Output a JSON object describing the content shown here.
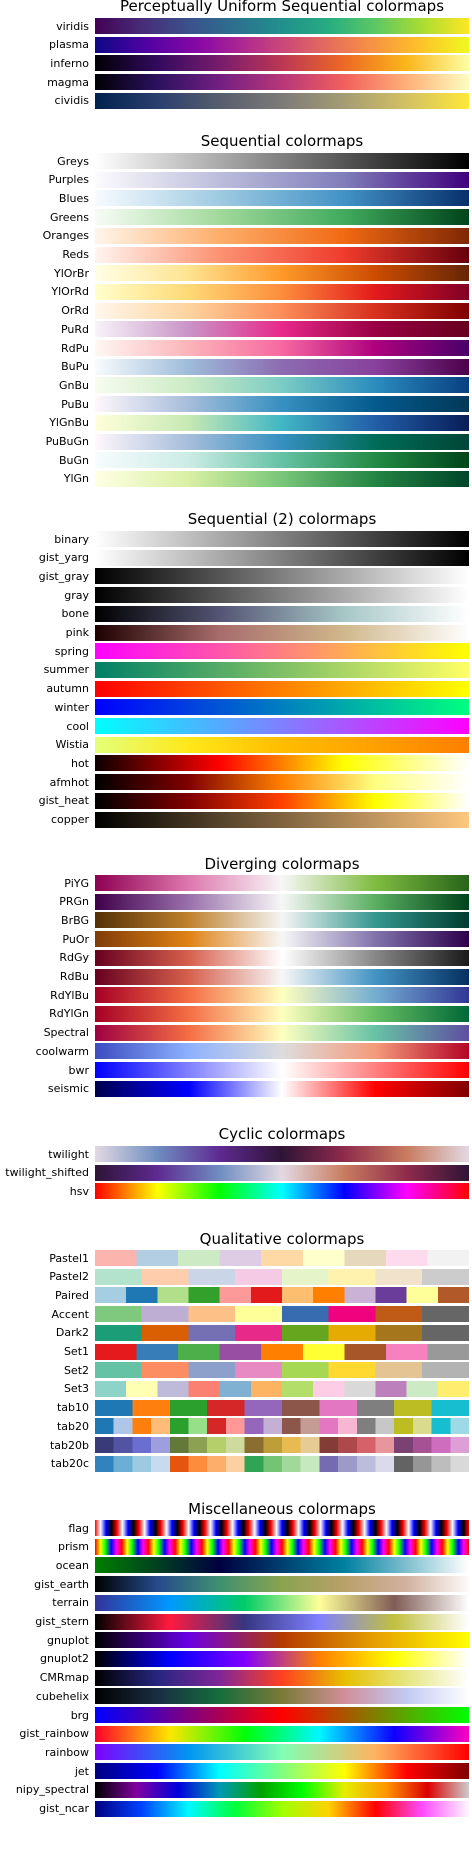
{
  "chart_data": [
    {
      "type": "heatmap",
      "title": "Perceptually Uniform Sequential colormaps",
      "series": [
        {
          "name": "viridis",
          "colors": [
            "#440154",
            "#472c7a",
            "#3b518b",
            "#2c718e",
            "#21908d",
            "#27ad81",
            "#5cc863",
            "#aadc32",
            "#fde725"
          ]
        },
        {
          "name": "plasma",
          "colors": [
            "#0d0887",
            "#5302a3",
            "#8b0aa5",
            "#b83289",
            "#db5c68",
            "#f48849",
            "#febd2a",
            "#f0f921"
          ]
        },
        {
          "name": "inferno",
          "colors": [
            "#000004",
            "#320a5e",
            "#781c6d",
            "#bc3754",
            "#ed6925",
            "#fbb61a",
            "#fcffa4"
          ]
        },
        {
          "name": "magma",
          "colors": [
            "#000004",
            "#2c115f",
            "#721f81",
            "#b73779",
            "#f1605d",
            "#feb078",
            "#fcfdbf"
          ]
        },
        {
          "name": "cividis",
          "colors": [
            "#00224e",
            "#2a3f6e",
            "#575d6d",
            "#7c7b78",
            "#a59c74",
            "#d3c064",
            "#fee838"
          ]
        }
      ]
    },
    {
      "type": "heatmap",
      "title": "Sequential colormaps",
      "series": [
        {
          "name": "Greys",
          "colors": [
            "#ffffff",
            "#000000"
          ]
        },
        {
          "name": "Purples",
          "colors": [
            "#fcfbfd",
            "#bcbddc",
            "#807dba",
            "#3f007d"
          ]
        },
        {
          "name": "Blues",
          "colors": [
            "#f7fbff",
            "#9ecae1",
            "#4292c6",
            "#08306b"
          ]
        },
        {
          "name": "Greens",
          "colors": [
            "#f7fcf5",
            "#a1d99b",
            "#41ab5d",
            "#00441b"
          ]
        },
        {
          "name": "Oranges",
          "colors": [
            "#fff5eb",
            "#fdae6b",
            "#f16913",
            "#7f2704"
          ]
        },
        {
          "name": "Reds",
          "colors": [
            "#fff5f0",
            "#fc9272",
            "#ef3b2c",
            "#67000d"
          ]
        },
        {
          "name": "YlOrBr",
          "colors": [
            "#ffffe5",
            "#fee391",
            "#fe9929",
            "#cc4c02",
            "#662506"
          ]
        },
        {
          "name": "YlOrRd",
          "colors": [
            "#ffffcc",
            "#fed976",
            "#fd8d3c",
            "#e31a1c",
            "#800026"
          ]
        },
        {
          "name": "OrRd",
          "colors": [
            "#fff7ec",
            "#fdd49e",
            "#fc8d59",
            "#d7301f",
            "#7f0000"
          ]
        },
        {
          "name": "PuRd",
          "colors": [
            "#f7f4f9",
            "#c994c7",
            "#e7298a",
            "#980043",
            "#67001f"
          ]
        },
        {
          "name": "RdPu",
          "colors": [
            "#fff7f3",
            "#fbb4b9",
            "#f768a1",
            "#ae017e",
            "#49006a"
          ]
        },
        {
          "name": "BuPu",
          "colors": [
            "#f7fcfd",
            "#9ebcda",
            "#8c6bb1",
            "#88419d",
            "#4d004b"
          ]
        },
        {
          "name": "GnBu",
          "colors": [
            "#f7fcf0",
            "#ccebc5",
            "#7bccc4",
            "#2b8cbe",
            "#084081"
          ]
        },
        {
          "name": "PuBu",
          "colors": [
            "#fff7fb",
            "#a6bddb",
            "#3690c0",
            "#045a8d",
            "#023858"
          ]
        },
        {
          "name": "YlGnBu",
          "colors": [
            "#ffffd9",
            "#c7e9b4",
            "#41b6c4",
            "#225ea8",
            "#081d58"
          ]
        },
        {
          "name": "PuBuGn",
          "colors": [
            "#fff7fb",
            "#a6bddb",
            "#3690c0",
            "#016c59",
            "#014636"
          ]
        },
        {
          "name": "BuGn",
          "colors": [
            "#f7fcfd",
            "#ccece6",
            "#66c2a4",
            "#238b45",
            "#00441b"
          ]
        },
        {
          "name": "YlGn",
          "colors": [
            "#ffffe5",
            "#d9f0a3",
            "#78c679",
            "#238443",
            "#004529"
          ]
        }
      ]
    },
    {
      "type": "heatmap",
      "title": "Sequential (2) colormaps",
      "series": [
        {
          "name": "binary",
          "colors": [
            "#ffffff",
            "#000000"
          ]
        },
        {
          "name": "gist_yarg",
          "colors": [
            "#ffffff",
            "#000000"
          ]
        },
        {
          "name": "gist_gray",
          "colors": [
            "#000000",
            "#ffffff"
          ]
        },
        {
          "name": "gray",
          "colors": [
            "#000000",
            "#ffffff"
          ]
        },
        {
          "name": "bone",
          "colors": [
            "#000000",
            "#545474",
            "#a7c7c7",
            "#ffffff"
          ]
        },
        {
          "name": "pink",
          "colors": [
            "#1e0000",
            "#a76c6c",
            "#d0b88c",
            "#ffffff"
          ]
        },
        {
          "name": "spring",
          "colors": [
            "#ff00ff",
            "#ffff00"
          ]
        },
        {
          "name": "summer",
          "colors": [
            "#008066",
            "#ffff66"
          ]
        },
        {
          "name": "autumn",
          "colors": [
            "#ff0000",
            "#ffff00"
          ]
        },
        {
          "name": "winter",
          "colors": [
            "#0000ff",
            "#00ff80"
          ]
        },
        {
          "name": "cool",
          "colors": [
            "#00ffff",
            "#ff00ff"
          ]
        },
        {
          "name": "Wistia",
          "colors": [
            "#e4ff7a",
            "#ffe81a",
            "#ffbd00",
            "#ffa000",
            "#fc7f00"
          ]
        },
        {
          "name": "hot",
          "colors": [
            "#0b0000",
            "#ff0000",
            "#ffff00",
            "#ffffff"
          ]
        },
        {
          "name": "afmhot",
          "colors": [
            "#000000",
            "#800000",
            "#ff8000",
            "#ffff80",
            "#ffffff"
          ]
        },
        {
          "name": "gist_heat",
          "colors": [
            "#000000",
            "#800000",
            "#ff4000",
            "#ffff00",
            "#ffffff"
          ]
        },
        {
          "name": "copper",
          "colors": [
            "#000000",
            "#ffc77f"
          ]
        }
      ]
    },
    {
      "type": "heatmap",
      "title": "Diverging colormaps",
      "series": [
        {
          "name": "PiYG",
          "colors": [
            "#8e0152",
            "#de77ae",
            "#f7f7f7",
            "#7fbc41",
            "#276419"
          ]
        },
        {
          "name": "PRGn",
          "colors": [
            "#40004b",
            "#9970ab",
            "#f7f7f7",
            "#5aae61",
            "#00441b"
          ]
        },
        {
          "name": "BrBG",
          "colors": [
            "#543005",
            "#bf812d",
            "#f5f5f5",
            "#35978f",
            "#003c30"
          ]
        },
        {
          "name": "PuOr",
          "colors": [
            "#7f3b08",
            "#e08214",
            "#f7f7f7",
            "#8073ac",
            "#2d004b"
          ]
        },
        {
          "name": "RdGy",
          "colors": [
            "#67001f",
            "#d6604d",
            "#ffffff",
            "#878787",
            "#1a1a1a"
          ]
        },
        {
          "name": "RdBu",
          "colors": [
            "#67001f",
            "#d6604d",
            "#f7f7f7",
            "#4393c3",
            "#053061"
          ]
        },
        {
          "name": "RdYlBu",
          "colors": [
            "#a50026",
            "#f46d43",
            "#ffffbf",
            "#74add1",
            "#313695"
          ]
        },
        {
          "name": "RdYlGn",
          "colors": [
            "#a50026",
            "#f46d43",
            "#ffffbf",
            "#66bd63",
            "#006837"
          ]
        },
        {
          "name": "Spectral",
          "colors": [
            "#9e0142",
            "#f46d43",
            "#ffffbf",
            "#66c2a5",
            "#5e4fa2"
          ]
        },
        {
          "name": "coolwarm",
          "colors": [
            "#3b4cc0",
            "#8db0fe",
            "#dddddd",
            "#f49a7b",
            "#b40426"
          ]
        },
        {
          "name": "bwr",
          "colors": [
            "#0000ff",
            "#ffffff",
            "#ff0000"
          ]
        },
        {
          "name": "seismic",
          "colors": [
            "#00004d",
            "#0000ff",
            "#ffffff",
            "#ff0000",
            "#800000"
          ]
        }
      ]
    },
    {
      "type": "heatmap",
      "title": "Cyclic colormaps",
      "series": [
        {
          "name": "twilight",
          "colors": [
            "#e2d9e2",
            "#6f8dc1",
            "#5e2a91",
            "#2f1436",
            "#8f2b4c",
            "#c87c5f",
            "#e2d9e2"
          ]
        },
        {
          "name": "twilight_shifted",
          "colors": [
            "#2f1436",
            "#5e2a91",
            "#6f8dc1",
            "#e2d9e2",
            "#c87c5f",
            "#8f2b4c",
            "#2f1436"
          ]
        },
        {
          "name": "hsv",
          "colors": [
            "#ff0000",
            "#ffff00",
            "#00ff00",
            "#00ffff",
            "#0000ff",
            "#ff00ff",
            "#ff0000"
          ]
        }
      ]
    },
    {
      "type": "heatmap",
      "title": "Qualitative colormaps",
      "series": [
        {
          "name": "Pastel1",
          "discrete": true,
          "colors": [
            "#fbb4ae",
            "#b3cde3",
            "#ccebc5",
            "#decbe4",
            "#fed9a6",
            "#ffffcc",
            "#e5d8bd",
            "#fddaec",
            "#f2f2f2"
          ]
        },
        {
          "name": "Pastel2",
          "discrete": true,
          "colors": [
            "#b3e2cd",
            "#fdcdac",
            "#cbd5e8",
            "#f4cae4",
            "#e6f5c9",
            "#fff2ae",
            "#f1e2cc",
            "#cccccc"
          ]
        },
        {
          "name": "Paired",
          "discrete": true,
          "colors": [
            "#a6cee3",
            "#1f78b4",
            "#b2df8a",
            "#33a02c",
            "#fb9a99",
            "#e31a1c",
            "#fdbf6f",
            "#ff7f00",
            "#cab2d6",
            "#6a3d9a",
            "#ffff99",
            "#b15928"
          ]
        },
        {
          "name": "Accent",
          "discrete": true,
          "colors": [
            "#7fc97f",
            "#beaed4",
            "#fdc086",
            "#ffff99",
            "#386cb0",
            "#f0027f",
            "#bf5b17",
            "#666666"
          ]
        },
        {
          "name": "Dark2",
          "discrete": true,
          "colors": [
            "#1b9e77",
            "#d95f02",
            "#7570b3",
            "#e7298a",
            "#66a61e",
            "#e6ab02",
            "#a6761d",
            "#666666"
          ]
        },
        {
          "name": "Set1",
          "discrete": true,
          "colors": [
            "#e41a1c",
            "#377eb8",
            "#4daf4a",
            "#984ea3",
            "#ff7f00",
            "#ffff33",
            "#a65628",
            "#f781bf",
            "#999999"
          ]
        },
        {
          "name": "Set2",
          "discrete": true,
          "colors": [
            "#66c2a5",
            "#fc8d62",
            "#8da0cb",
            "#e78ac3",
            "#a6d854",
            "#ffd92f",
            "#e5c494",
            "#b3b3b3"
          ]
        },
        {
          "name": "Set3",
          "discrete": true,
          "colors": [
            "#8dd3c7",
            "#ffffb3",
            "#bebada",
            "#fb8072",
            "#80b1d3",
            "#fdb462",
            "#b3de69",
            "#fccde5",
            "#d9d9d9",
            "#bc80bd",
            "#ccebc5",
            "#ffed6f"
          ]
        },
        {
          "name": "tab10",
          "discrete": true,
          "colors": [
            "#1f77b4",
            "#ff7f0e",
            "#2ca02c",
            "#d62728",
            "#9467bd",
            "#8c564b",
            "#e377c2",
            "#7f7f7f",
            "#bcbd22",
            "#17becf"
          ]
        },
        {
          "name": "tab20",
          "discrete": true,
          "colors": [
            "#1f77b4",
            "#aec7e8",
            "#ff7f0e",
            "#ffbb78",
            "#2ca02c",
            "#98df8a",
            "#d62728",
            "#ff9896",
            "#9467bd",
            "#c5b0d5",
            "#8c564b",
            "#c49c94",
            "#e377c2",
            "#f7b6d2",
            "#7f7f7f",
            "#c7c7c7",
            "#bcbd22",
            "#dbdb8d",
            "#17becf",
            "#9edae5"
          ]
        },
        {
          "name": "tab20b",
          "discrete": true,
          "colors": [
            "#393b79",
            "#5254a3",
            "#6b6ecf",
            "#9c9ede",
            "#637939",
            "#8ca252",
            "#b5cf6b",
            "#cedb9c",
            "#8c6d31",
            "#bd9e39",
            "#e7ba52",
            "#e7cb94",
            "#843c39",
            "#ad494a",
            "#d6616b",
            "#e7969c",
            "#7b4173",
            "#a55194",
            "#ce6dbd",
            "#de9ed6"
          ]
        },
        {
          "name": "tab20c",
          "discrete": true,
          "colors": [
            "#3182bd",
            "#6baed6",
            "#9ecae1",
            "#c6dbef",
            "#e6550d",
            "#fd8d3c",
            "#fdae6b",
            "#fdd0a2",
            "#31a354",
            "#74c476",
            "#a1d99b",
            "#c7e9c0",
            "#756bb1",
            "#9e9ac8",
            "#bcbddc",
            "#dadaeb",
            "#636363",
            "#969696",
            "#bdbdbd",
            "#d9d9d9"
          ]
        }
      ]
    },
    {
      "type": "heatmap",
      "title": "Miscellaneous colormaps",
      "series": [
        {
          "name": "flag",
          "repeat": 17,
          "colors": [
            "#ff0000",
            "#ffffff",
            "#0000ff",
            "#000000",
            "#ff0000"
          ]
        },
        {
          "name": "prism",
          "repeat": 14,
          "colors": [
            "#ff0000",
            "#ffff00",
            "#00ff00",
            "#0000ff",
            "#ff00ff",
            "#ff0000"
          ]
        },
        {
          "name": "ocean",
          "colors": [
            "#008000",
            "#000040",
            "#0080a0",
            "#ffffff"
          ]
        },
        {
          "name": "gist_earth",
          "colors": [
            "#000000",
            "#264a8c",
            "#3f9070",
            "#8aa34f",
            "#b9a06a",
            "#d2b2a0",
            "#fdfbfb"
          ]
        },
        {
          "name": "terrain",
          "colors": [
            "#333399",
            "#0099ff",
            "#00cc66",
            "#ffff99",
            "#805c56",
            "#ffffff"
          ]
        },
        {
          "name": "gist_stern",
          "colors": [
            "#000000",
            "#ff1a40",
            "#363680",
            "#8080ff",
            "#c0c040",
            "#ffffff"
          ]
        },
        {
          "name": "gnuplot",
          "colors": [
            "#000000",
            "#6a00e6",
            "#b43900",
            "#e6a000",
            "#ffff00"
          ]
        },
        {
          "name": "gnuplot2",
          "colors": [
            "#000000",
            "#0000ff",
            "#8000ff",
            "#ff8000",
            "#ffff00",
            "#ffffff"
          ]
        },
        {
          "name": "CMRmap",
          "colors": [
            "#000000",
            "#262680",
            "#802699",
            "#ff4020",
            "#e6c000",
            "#e6e680",
            "#ffffff"
          ]
        },
        {
          "name": "cubehelix",
          "colors": [
            "#000000",
            "#1a2d42",
            "#166d3e",
            "#7b7a36",
            "#d08e98",
            "#c1caf3",
            "#ffffff"
          ]
        },
        {
          "name": "brg",
          "colors": [
            "#0000ff",
            "#ff0000",
            "#00ff00"
          ]
        },
        {
          "name": "gist_rainbow",
          "colors": [
            "#ff0029",
            "#ffe600",
            "#00ff08",
            "#00f7ff",
            "#0e00ff",
            "#ff00bf"
          ]
        },
        {
          "name": "rainbow",
          "colors": [
            "#8000ff",
            "#0095f2",
            "#80ffb4",
            "#ffb360",
            "#ff0000"
          ]
        },
        {
          "name": "jet",
          "colors": [
            "#00007f",
            "#0000ff",
            "#00ffff",
            "#80ff80",
            "#ffff00",
            "#ff0000",
            "#7f0000"
          ]
        },
        {
          "name": "nipy_spectral",
          "colors": [
            "#000000",
            "#8200a0",
            "#0000dd",
            "#009ab2",
            "#00a200",
            "#00ff00",
            "#e5ee00",
            "#ff9700",
            "#dd0000",
            "#cccccc"
          ]
        },
        {
          "name": "gist_ncar",
          "colors": [
            "#000080",
            "#0042ff",
            "#00f8ff",
            "#00ff3a",
            "#9fff00",
            "#ffd200",
            "#ff0000",
            "#ff4cff",
            "#fef8fe"
          ]
        }
      ]
    }
  ]
}
